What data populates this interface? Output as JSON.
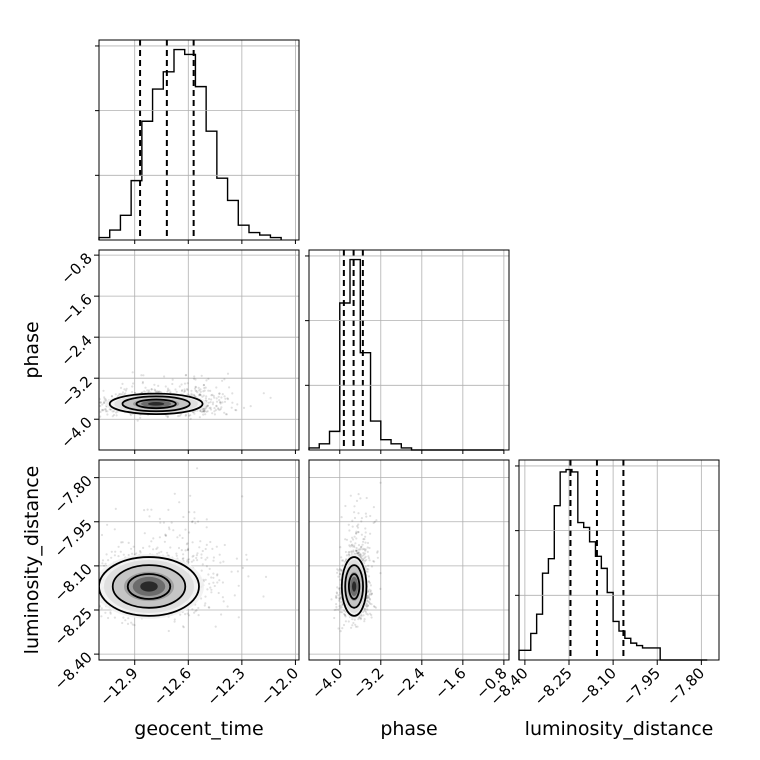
{
  "chart_data": {
    "type": "corner",
    "parameters": [
      "geocent_time",
      "phase",
      "luminosity_distance"
    ],
    "ranges": {
      "geocent_time": [
        -13.1,
        -11.98
      ],
      "phase": [
        -4.6,
        -0.7
      ],
      "luminosity_distance": [
        -8.42,
        -7.74
      ]
    },
    "ticks": {
      "geocent_time": [
        "−12.9",
        "−12.6",
        "−12.3",
        "−12.0"
      ],
      "phase": [
        "−4.0",
        "−3.2",
        "−2.4",
        "−1.6",
        "−0.8"
      ],
      "luminosity_distance": [
        "−8.40",
        "−8.25",
        "−8.10",
        "−7.95",
        "−7.80"
      ]
    },
    "tick_values": {
      "geocent_time": [
        -12.9,
        -12.6,
        -12.3,
        -12.0
      ],
      "phase": [
        -4.0,
        -3.2,
        -2.4,
        -1.6,
        -0.8
      ],
      "luminosity_distance": [
        -8.4,
        -8.25,
        -8.1,
        -7.95,
        -7.8
      ]
    },
    "quantiles": {
      "geocent_time": [
        -12.87,
        -12.72,
        -12.57
      ],
      "phase": [
        -3.92,
        -3.73,
        -3.55
      ],
      "luminosity_distance": [
        -8.245,
        -8.155,
        -8.065
      ]
    },
    "histograms": {
      "geocent_time": {
        "edges": [
          -13.1,
          -13.04,
          -12.98,
          -12.92,
          -12.86,
          -12.8,
          -12.74,
          -12.68,
          -12.62,
          -12.56,
          -12.5,
          -12.44,
          -12.38,
          -12.32,
          -12.26,
          -12.2,
          -12.14,
          -12.08
        ],
        "counts": [
          1,
          4,
          10,
          24,
          48,
          61,
          68,
          77,
          75,
          62,
          44,
          25,
          16,
          6,
          3,
          2,
          1
        ]
      },
      "phase": {
        "edges": [
          -4.6,
          -4.4,
          -4.2,
          -4.0,
          -3.8,
          -3.6,
          -3.4,
          -3.2,
          -3.0,
          -2.8,
          -2.6,
          -2.4,
          -2.2,
          -2.0,
          -1.8,
          -1.6,
          -1.4,
          -1.2,
          -1.0,
          -0.8
        ],
        "counts": [
          1,
          3,
          9,
          71,
          92,
          47,
          14,
          5,
          3,
          1,
          0,
          0,
          0,
          0,
          0,
          0,
          0,
          0,
          0
        ]
      },
      "luminosity_distance": {
        "edges": [
          -8.42,
          -8.4,
          -8.38,
          -8.36,
          -8.34,
          -8.32,
          -8.3,
          -8.28,
          -8.26,
          -8.24,
          -8.22,
          -8.2,
          -8.18,
          -8.16,
          -8.14,
          -8.12,
          -8.1,
          -8.08,
          -8.06,
          -8.04,
          -8.02,
          -8.0,
          -7.98,
          -7.96,
          -7.94,
          -7.92,
          -7.9,
          -7.88,
          -7.86,
          -7.84,
          -7.82,
          -7.8,
          -7.78
        ],
        "counts": [
          4,
          4,
          11,
          19,
          36,
          42,
          64,
          78,
          79,
          78,
          57,
          55,
          49,
          43,
          38,
          28,
          16,
          12,
          9,
          7,
          6,
          5,
          5,
          5,
          0,
          0,
          0,
          0,
          0,
          0,
          0,
          0
        ]
      }
    },
    "joint": {
      "phase|geocent_time": {
        "center": [
          -12.78,
          -3.7
        ],
        "spread": [
          0.13,
          0.1
        ]
      },
      "luminosity_distance|geocent_time": {
        "center": [
          -12.82,
          -8.17
        ],
        "spread": [
          0.14,
          0.05
        ]
      },
      "luminosity_distance|phase": {
        "center": [
          -3.72,
          -8.17
        ],
        "spread": [
          0.12,
          0.05
        ]
      }
    },
    "grid": true
  }
}
